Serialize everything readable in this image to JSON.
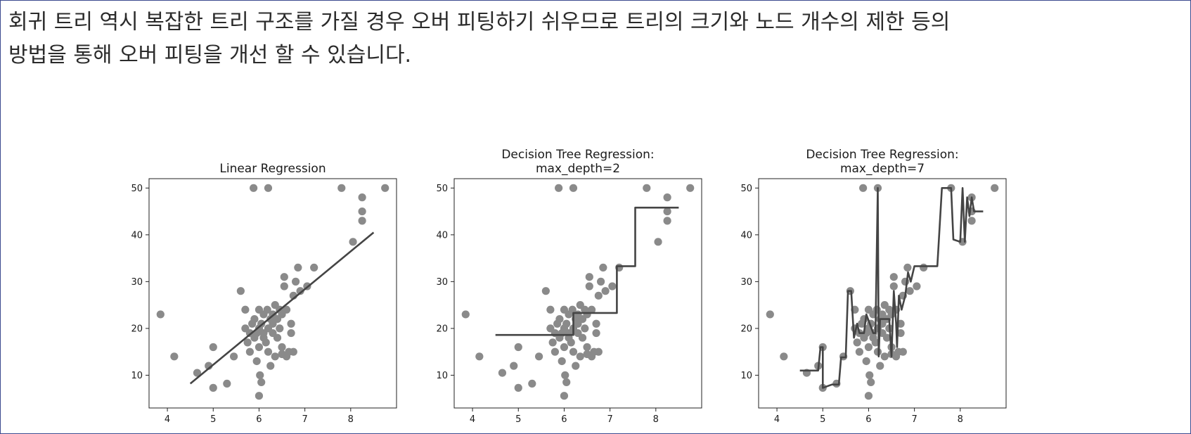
{
  "paragraph": {
    "line1": "회귀 트리 역시 복잡한 트리 구조를 가질 경우 오버 피팅하기 쉬우므로 트리의 크기와 노드 개수의 제한 등의",
    "line2": "방법을 통해 오버 피팅을 개선 할 수 있습니다."
  },
  "chart_data": [
    {
      "type": "scatter",
      "title": [
        "Linear Regression"
      ],
      "xlim": [
        3.6,
        9.0
      ],
      "ylim": [
        3,
        52
      ],
      "xticks": [
        4,
        5,
        6,
        7,
        8
      ],
      "yticks": [
        10,
        20,
        30,
        40,
        50
      ],
      "points_color": "#8a8a8a",
      "points": [
        [
          3.85,
          23
        ],
        [
          4.15,
          14
        ],
        [
          4.65,
          10.5
        ],
        [
          4.9,
          12
        ],
        [
          5.0,
          16
        ],
        [
          5.0,
          7.3
        ],
        [
          5.3,
          8.2
        ],
        [
          5.45,
          14
        ],
        [
          5.6,
          28
        ],
        [
          5.7,
          24
        ],
        [
          5.7,
          20
        ],
        [
          5.75,
          17
        ],
        [
          5.8,
          19
        ],
        [
          5.8,
          15
        ],
        [
          5.85,
          21
        ],
        [
          5.9,
          22
        ],
        [
          5.9,
          18
        ],
        [
          5.95,
          13
        ],
        [
          5.95,
          19
        ],
        [
          5.88,
          50
        ],
        [
          6.0,
          24
        ],
        [
          6.0,
          20
        ],
        [
          6.0,
          16
        ],
        [
          6.02,
          10
        ],
        [
          6.05,
          21
        ],
        [
          6.05,
          8.5
        ],
        [
          6.0,
          5.6
        ],
        [
          6.1,
          23
        ],
        [
          6.1,
          19
        ],
        [
          6.1,
          18
        ],
        [
          6.15,
          17
        ],
        [
          6.18,
          24
        ],
        [
          6.2,
          50
        ],
        [
          6.2,
          20
        ],
        [
          6.2,
          15
        ],
        [
          6.25,
          12
        ],
        [
          6.25,
          22
        ],
        [
          6.3,
          23
        ],
        [
          6.3,
          21
        ],
        [
          6.3,
          19
        ],
        [
          6.35,
          25
        ],
        [
          6.35,
          14
        ],
        [
          6.4,
          22
        ],
        [
          6.4,
          18
        ],
        [
          6.45,
          24
        ],
        [
          6.45,
          20
        ],
        [
          6.5,
          16
        ],
        [
          6.5,
          14.5
        ],
        [
          6.5,
          23
        ],
        [
          6.55,
          31
        ],
        [
          6.55,
          29
        ],
        [
          6.6,
          24
        ],
        [
          6.6,
          14
        ],
        [
          6.65,
          15
        ],
        [
          6.7,
          21
        ],
        [
          6.7,
          19
        ],
        [
          6.75,
          27
        ],
        [
          6.75,
          15
        ],
        [
          6.8,
          30
        ],
        [
          6.85,
          33
        ],
        [
          6.9,
          28
        ],
        [
          7.05,
          29
        ],
        [
          7.2,
          33
        ],
        [
          7.8,
          50
        ],
        [
          8.05,
          38.5
        ],
        [
          8.25,
          48
        ],
        [
          8.25,
          45
        ],
        [
          8.25,
          43
        ],
        [
          8.75,
          50
        ]
      ],
      "lines": [
        [
          [
            4.5,
            8.2
          ],
          [
            8.5,
            40.5
          ]
        ]
      ]
    },
    {
      "type": "scatter",
      "title": [
        "Decision Tree Regression:",
        "max_depth=2"
      ],
      "xlim": [
        3.6,
        9.0
      ],
      "ylim": [
        3,
        52
      ],
      "xticks": [
        4,
        5,
        6,
        7,
        8
      ],
      "yticks": [
        10,
        20,
        30,
        40,
        50
      ],
      "points_color": "#8a8a8a",
      "points": [
        [
          3.85,
          23
        ],
        [
          4.15,
          14
        ],
        [
          4.65,
          10.5
        ],
        [
          4.9,
          12
        ],
        [
          5.0,
          16
        ],
        [
          5.0,
          7.3
        ],
        [
          5.3,
          8.2
        ],
        [
          5.45,
          14
        ],
        [
          5.6,
          28
        ],
        [
          5.7,
          24
        ],
        [
          5.7,
          20
        ],
        [
          5.75,
          17
        ],
        [
          5.8,
          19
        ],
        [
          5.8,
          15
        ],
        [
          5.85,
          21
        ],
        [
          5.9,
          22
        ],
        [
          5.9,
          18
        ],
        [
          5.95,
          13
        ],
        [
          5.95,
          19
        ],
        [
          5.88,
          50
        ],
        [
          6.0,
          24
        ],
        [
          6.0,
          20
        ],
        [
          6.0,
          16
        ],
        [
          6.02,
          10
        ],
        [
          6.05,
          21
        ],
        [
          6.05,
          8.5
        ],
        [
          6.0,
          5.6
        ],
        [
          6.1,
          23
        ],
        [
          6.1,
          19
        ],
        [
          6.1,
          18
        ],
        [
          6.15,
          17
        ],
        [
          6.18,
          24
        ],
        [
          6.2,
          50
        ],
        [
          6.2,
          20
        ],
        [
          6.2,
          15
        ],
        [
          6.25,
          12
        ],
        [
          6.25,
          22
        ],
        [
          6.3,
          23
        ],
        [
          6.3,
          21
        ],
        [
          6.3,
          19
        ],
        [
          6.35,
          25
        ],
        [
          6.35,
          14
        ],
        [
          6.4,
          22
        ],
        [
          6.4,
          18
        ],
        [
          6.45,
          24
        ],
        [
          6.45,
          20
        ],
        [
          6.5,
          16
        ],
        [
          6.5,
          14.5
        ],
        [
          6.5,
          23
        ],
        [
          6.55,
          31
        ],
        [
          6.55,
          29
        ],
        [
          6.6,
          24
        ],
        [
          6.6,
          14
        ],
        [
          6.65,
          15
        ],
        [
          6.7,
          21
        ],
        [
          6.7,
          19
        ],
        [
          6.75,
          27
        ],
        [
          6.75,
          15
        ],
        [
          6.8,
          30
        ],
        [
          6.85,
          33
        ],
        [
          6.9,
          28
        ],
        [
          7.05,
          29
        ],
        [
          7.2,
          33
        ],
        [
          7.8,
          50
        ],
        [
          8.05,
          38.5
        ],
        [
          8.25,
          48
        ],
        [
          8.25,
          45
        ],
        [
          8.25,
          43
        ],
        [
          8.75,
          50
        ]
      ],
      "lines": [
        [
          [
            4.5,
            18.6
          ],
          [
            6.2,
            18.6
          ],
          [
            6.2,
            23.3
          ],
          [
            7.15,
            23.3
          ],
          [
            7.15,
            33.3
          ],
          [
            7.55,
            33.3
          ],
          [
            7.55,
            45.8
          ],
          [
            8.5,
            45.8
          ]
        ]
      ]
    },
    {
      "type": "scatter",
      "title": [
        "Decision Tree Regression:",
        "max_depth=7"
      ],
      "xlim": [
        3.6,
        9.0
      ],
      "ylim": [
        3,
        52
      ],
      "xticks": [
        4,
        5,
        6,
        7,
        8
      ],
      "yticks": [
        10,
        20,
        30,
        40,
        50
      ],
      "points_color": "#8a8a8a",
      "points": [
        [
          3.85,
          23
        ],
        [
          4.15,
          14
        ],
        [
          4.65,
          10.5
        ],
        [
          4.9,
          12
        ],
        [
          5.0,
          16
        ],
        [
          5.0,
          7.3
        ],
        [
          5.3,
          8.2
        ],
        [
          5.45,
          14
        ],
        [
          5.6,
          28
        ],
        [
          5.7,
          24
        ],
        [
          5.7,
          20
        ],
        [
          5.75,
          17
        ],
        [
          5.8,
          19
        ],
        [
          5.8,
          15
        ],
        [
          5.85,
          21
        ],
        [
          5.9,
          22
        ],
        [
          5.9,
          18
        ],
        [
          5.95,
          13
        ],
        [
          5.95,
          19
        ],
        [
          5.88,
          50
        ],
        [
          6.0,
          24
        ],
        [
          6.0,
          20
        ],
        [
          6.0,
          16
        ],
        [
          6.02,
          10
        ],
        [
          6.05,
          21
        ],
        [
          6.05,
          8.5
        ],
        [
          6.0,
          5.6
        ],
        [
          6.1,
          23
        ],
        [
          6.1,
          19
        ],
        [
          6.1,
          18
        ],
        [
          6.15,
          17
        ],
        [
          6.18,
          24
        ],
        [
          6.2,
          50
        ],
        [
          6.2,
          20
        ],
        [
          6.2,
          15
        ],
        [
          6.25,
          12
        ],
        [
          6.25,
          22
        ],
        [
          6.3,
          23
        ],
        [
          6.3,
          21
        ],
        [
          6.3,
          19
        ],
        [
          6.35,
          25
        ],
        [
          6.35,
          14
        ],
        [
          6.4,
          22
        ],
        [
          6.4,
          18
        ],
        [
          6.45,
          24
        ],
        [
          6.45,
          20
        ],
        [
          6.5,
          16
        ],
        [
          6.5,
          14.5
        ],
        [
          6.5,
          23
        ],
        [
          6.55,
          31
        ],
        [
          6.55,
          29
        ],
        [
          6.6,
          24
        ],
        [
          6.6,
          14
        ],
        [
          6.65,
          15
        ],
        [
          6.7,
          21
        ],
        [
          6.7,
          19
        ],
        [
          6.75,
          27
        ],
        [
          6.75,
          15
        ],
        [
          6.8,
          30
        ],
        [
          6.85,
          33
        ],
        [
          6.9,
          28
        ],
        [
          7.05,
          29
        ],
        [
          7.2,
          33
        ],
        [
          7.8,
          50
        ],
        [
          8.05,
          38.5
        ],
        [
          8.25,
          48
        ],
        [
          8.25,
          45
        ],
        [
          8.25,
          43
        ],
        [
          8.75,
          50
        ]
      ],
      "lines": [
        [
          [
            4.5,
            11
          ],
          [
            4.9,
            11
          ],
          [
            4.95,
            16
          ],
          [
            5.0,
            16
          ],
          [
            5.0,
            7.3
          ],
          [
            5.2,
            8
          ],
          [
            5.35,
            8
          ],
          [
            5.4,
            13.8
          ],
          [
            5.5,
            13.8
          ],
          [
            5.55,
            28
          ],
          [
            5.62,
            28
          ],
          [
            5.68,
            18
          ],
          [
            5.75,
            21
          ],
          [
            5.8,
            19
          ],
          [
            5.9,
            19
          ],
          [
            5.95,
            23
          ],
          [
            6.1,
            19
          ],
          [
            6.15,
            19
          ],
          [
            6.2,
            50
          ],
          [
            6.22,
            14
          ],
          [
            6.25,
            22
          ],
          [
            6.45,
            22
          ],
          [
            6.5,
            14
          ],
          [
            6.55,
            28
          ],
          [
            6.6,
            21
          ],
          [
            6.62,
            16
          ],
          [
            6.66,
            27
          ],
          [
            6.72,
            24
          ],
          [
            6.8,
            27
          ],
          [
            6.86,
            32
          ],
          [
            6.92,
            30
          ],
          [
            7.0,
            33.3
          ],
          [
            7.5,
            33.3
          ],
          [
            7.6,
            50
          ],
          [
            7.8,
            50
          ],
          [
            7.85,
            39
          ],
          [
            8.0,
            38.5
          ],
          [
            8.05,
            50
          ],
          [
            8.1,
            38.5
          ],
          [
            8.15,
            48
          ],
          [
            8.2,
            44
          ],
          [
            8.25,
            48
          ],
          [
            8.3,
            45
          ],
          [
            8.5,
            45
          ]
        ]
      ]
    }
  ]
}
